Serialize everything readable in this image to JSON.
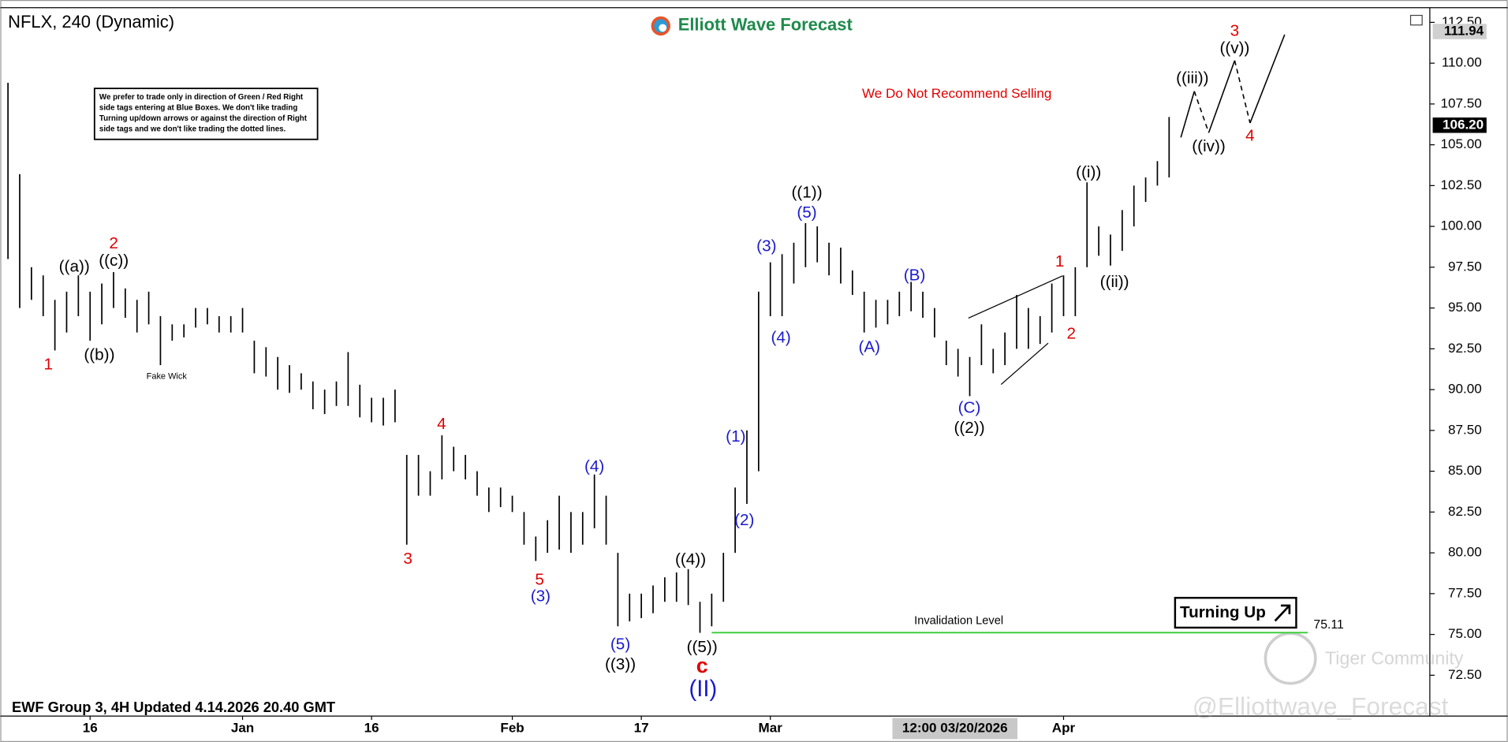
{
  "chart_data": {
    "type": "ohlc",
    "title": "NFLX, 240 (Dynamic)",
    "brand": "Elliott Wave Forecast",
    "footer": "EWF Group 3, 4H Updated 4.14.2026 20.40 GMT",
    "note_lines": [
      "We prefer to trade only in direction of Green / Red Right",
      "side tags entering at Blue Boxes. We don't like trading",
      "Turning up/down arrows or against the direction of Right",
      "side tags and we don't like trading the dotted lines."
    ],
    "signal": "Turning Up",
    "crosshair_label": "12:00 03/20/2026",
    "watermarks": [
      "Tiger Community",
      "@Elliottwave_Forecast"
    ],
    "bar_color": "#000000",
    "categories": [
      null,
      null,
      null,
      null,
      null,
      null,
      null,
      "16",
      null,
      null,
      null,
      null,
      null,
      null,
      null,
      null,
      null,
      null,
      null,
      null,
      "Jan",
      null,
      null,
      null,
      null,
      null,
      null,
      null,
      null,
      null,
      null,
      "16",
      null,
      null,
      null,
      null,
      null,
      null,
      null,
      null,
      null,
      null,
      null,
      "Feb",
      null,
      null,
      null,
      null,
      null,
      null,
      null,
      null,
      null,
      null,
      "17",
      null,
      null,
      null,
      null,
      null,
      null,
      null,
      null,
      null,
      null,
      "Mar",
      null,
      null,
      null,
      null,
      null,
      null,
      null,
      null,
      null,
      null,
      null,
      null,
      null,
      null,
      null,
      null,
      null,
      null,
      null,
      null,
      null,
      null,
      null,
      null,
      "Apr",
      null,
      null,
      null,
      null,
      null,
      null,
      null,
      null,
      null
    ],
    "high": [
      108.8,
      103.2,
      97.5,
      97,
      95.5,
      96,
      97,
      96,
      96.5,
      97.2,
      96.2,
      95.5,
      96,
      94.5,
      94,
      94,
      95,
      95,
      94.5,
      94.5,
      95,
      93,
      92.6,
      92,
      91.5,
      91,
      90.5,
      90,
      90.5,
      92.3,
      90.3,
      89.5,
      89.5,
      90,
      86,
      86,
      85,
      87.2,
      86.5,
      86,
      85,
      84,
      84,
      83.5,
      82.5,
      81,
      82,
      83.5,
      82.5,
      82.5,
      84.8,
      83.5,
      80,
      77.5,
      77.5,
      78,
      78.5,
      78.8,
      79,
      77,
      77.5,
      80,
      84,
      87.5,
      96,
      97.8,
      98.3,
      99,
      100.2,
      100,
      99,
      98.7,
      97.3,
      96,
      95.5,
      95.5,
      96,
      96.6,
      96,
      95,
      93,
      92.5,
      92,
      94,
      92.5,
      93.5,
      95.8,
      95,
      94.5,
      96.5,
      97,
      97.5,
      102.7,
      100,
      99.5,
      101,
      102.5,
      103,
      104,
      106.7
    ],
    "low": [
      98,
      95,
      95.5,
      94.5,
      92.4,
      93.5,
      94.5,
      93,
      94,
      95,
      94.4,
      93.5,
      94,
      91.5,
      93,
      93.2,
      93.8,
      94,
      93.5,
      93.5,
      93.5,
      91,
      90.8,
      90,
      89.8,
      90,
      88.8,
      88.5,
      89,
      89,
      88.3,
      88,
      87.8,
      88,
      80.5,
      83.5,
      83.5,
      84.5,
      85,
      84.5,
      83.5,
      82.5,
      82.8,
      82.5,
      80.5,
      79.5,
      80,
      80.2,
      80,
      80.5,
      81.5,
      80.5,
      75.5,
      75.8,
      76,
      76.3,
      77,
      77,
      76.8,
      75.1,
      75.5,
      77,
      80,
      83,
      85,
      94.5,
      94.5,
      96.5,
      97.5,
      97.8,
      97,
      96.5,
      95.8,
      93.5,
      93.8,
      94,
      94.5,
      94.8,
      94.4,
      93.2,
      91.5,
      90.8,
      89.6,
      91.5,
      91,
      91.5,
      92.5,
      92.5,
      92.8,
      93.5,
      94.5,
      94.5,
      97.5,
      98.2,
      97.6,
      98.5,
      100,
      101.5,
      102.5,
      103
    ],
    "ylim": [
      70,
      113.4
    ],
    "yticks": [
      {
        "value": 72.5,
        "label": "72.50"
      },
      {
        "value": 75,
        "label": "75.00"
      },
      {
        "value": 77.5,
        "label": "77.50"
      },
      {
        "value": 80,
        "label": "80.00"
      },
      {
        "value": 82.5,
        "label": "82.50"
      },
      {
        "value": 85,
        "label": "85.00"
      },
      {
        "value": 87.5,
        "label": "87.50"
      },
      {
        "value": 90,
        "label": "90.00"
      },
      {
        "value": 92.5,
        "label": "92.50"
      },
      {
        "value": 95,
        "label": "95.00"
      },
      {
        "value": 97.5,
        "label": "97.50"
      },
      {
        "value": 100,
        "label": "100.00"
      },
      {
        "value": 102.5,
        "label": "102.50"
      },
      {
        "value": 105,
        "label": "105.00"
      },
      {
        "value": 107.5,
        "label": "107.50"
      },
      {
        "value": 110,
        "label": "110.00"
      },
      {
        "value": 112.5,
        "label": "112.50"
      }
    ],
    "grid": false,
    "last_price": {
      "value": 106.2,
      "label": "106.20"
    },
    "target_price": 111.94,
    "invalidation_level": 75.11,
    "invalidation_color": "#33cc33",
    "annotations": [
      {
        "text": "1",
        "color": "#e00000"
      },
      {
        "text": "((a))",
        "color": "#000000"
      },
      {
        "text": "2",
        "color": "#e00000"
      },
      {
        "text": "((c))",
        "color": "#000000"
      },
      {
        "text": "((b))",
        "color": "#000000"
      },
      {
        "text": "Fake Wick",
        "color": "#000000"
      },
      {
        "text": "3",
        "color": "#e00000"
      },
      {
        "text": "4",
        "color": "#e00000"
      },
      {
        "text": "5",
        "color": "#e00000"
      },
      {
        "text": "(3)",
        "color": "#1a1acc"
      },
      {
        "text": "(4)",
        "color": "#1a1acc"
      },
      {
        "text": "(5)",
        "color": "#1a1acc"
      },
      {
        "text": "((3))",
        "color": "#000000"
      },
      {
        "text": "((4))",
        "color": "#000000"
      },
      {
        "text": "((5))",
        "color": "#000000"
      },
      {
        "text": "c",
        "color": "#e00000"
      },
      {
        "text": "(II)",
        "color": "#1a1acc"
      },
      {
        "text": "(1)",
        "color": "#1a1acc"
      },
      {
        "text": "(2)",
        "color": "#1a1acc"
      },
      {
        "text": "(3)",
        "color": "#1a1acc"
      },
      {
        "text": "(4)",
        "color": "#1a1acc"
      },
      {
        "text": "(5)",
        "color": "#1a1acc"
      },
      {
        "text": "((1))",
        "color": "#000000"
      },
      {
        "text": "(A)",
        "color": "#1a1acc"
      },
      {
        "text": "(B)",
        "color": "#1a1acc"
      },
      {
        "text": "(C)",
        "color": "#1a1acc"
      },
      {
        "text": "((2))",
        "color": "#000000"
      },
      {
        "text": "1",
        "color": "#e00000"
      },
      {
        "text": "2",
        "color": "#e00000"
      },
      {
        "text": "((i))",
        "color": "#000000"
      },
      {
        "text": "((ii))",
        "color": "#000000"
      },
      {
        "text": "((iii))",
        "color": "#000000"
      },
      {
        "text": "((iv))",
        "color": "#000000"
      },
      {
        "text": "((v))",
        "color": "#000000"
      },
      {
        "text": "3",
        "color": "#e00000"
      },
      {
        "text": "4",
        "color": "#e00000"
      },
      {
        "text": "We Do Not Recommend Selling",
        "color": "#e00000"
      },
      {
        "text": "Invalidation Level",
        "color": "#000000"
      }
    ]
  }
}
